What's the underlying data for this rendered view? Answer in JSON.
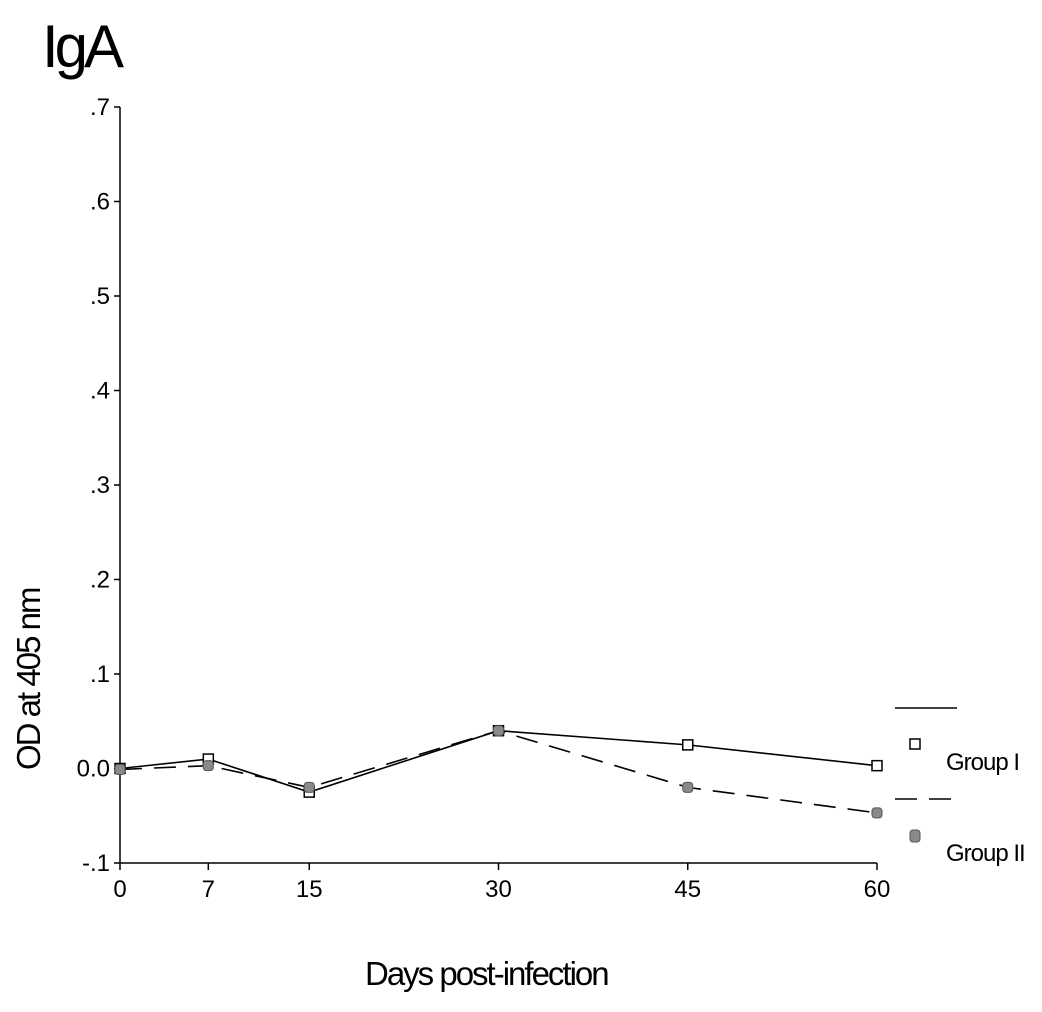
{
  "chart_data": {
    "type": "line",
    "title": "IgA",
    "xlabel": "Days post-infection",
    "ylabel": "OD at 405 nm",
    "x": [
      0,
      7,
      15,
      30,
      45,
      60
    ],
    "xlim": [
      0,
      60
    ],
    "ylim": [
      -0.1,
      0.7
    ],
    "y_ticks": [
      -0.1,
      0.0,
      0.1,
      0.2,
      0.3,
      0.4,
      0.5,
      0.6,
      0.7
    ],
    "y_tick_labels": [
      "-.1",
      "0.0",
      ".1",
      ".2",
      ".3",
      ".4",
      ".5",
      ".6",
      ".7"
    ],
    "x_tick_labels": [
      "0",
      "7",
      "15",
      "30",
      "45",
      "60"
    ],
    "grid": false,
    "legend_position": "right",
    "series": [
      {
        "name": "Group I",
        "style": "solid",
        "marker": "open-square",
        "color": "#000000",
        "values": [
          0.0,
          0.01,
          -0.025,
          0.04,
          0.025,
          0.003
        ]
      },
      {
        "name": "Group II",
        "style": "dashed",
        "marker": "filled-square",
        "color": "#000000",
        "values": [
          -0.001,
          0.003,
          -0.02,
          0.04,
          -0.02,
          -0.047
        ]
      }
    ]
  }
}
